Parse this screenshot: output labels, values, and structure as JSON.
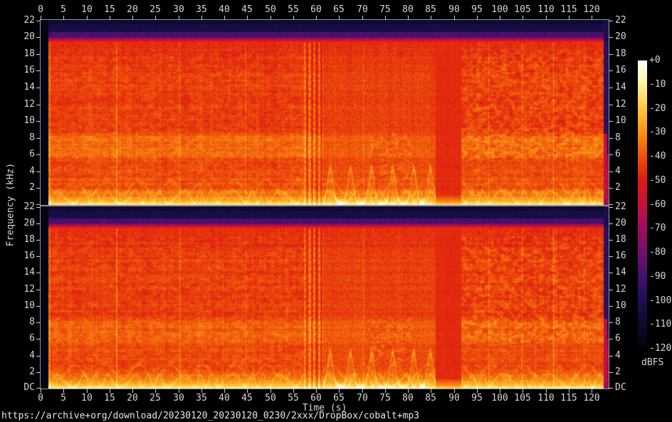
{
  "chart_data": {
    "type": "heatmap",
    "subtype": "audio-spectrogram",
    "channels": 2,
    "xlabel": "Time (s)",
    "ylabel": "Frequency (kHz)",
    "colorbar_label": "dBFS",
    "x_range_s": [
      0,
      123.7
    ],
    "x_ticks": [
      0,
      5,
      10,
      15,
      20,
      25,
      30,
      35,
      40,
      45,
      50,
      55,
      60,
      65,
      70,
      75,
      80,
      85,
      90,
      95,
      100,
      105,
      110,
      115,
      120
    ],
    "y_range_khz": [
      0,
      22.05
    ],
    "y_tick_khz": [
      22,
      20,
      18,
      16,
      14,
      12,
      10,
      8,
      6,
      4,
      2
    ],
    "y_dc_label": "DC",
    "colorbar_range_db": [
      -120,
      0
    ],
    "colorbar_tick_labels": [
      "+0",
      "-10",
      "-20",
      "-30",
      "-40",
      "-50",
      "-60",
      "-70",
      "-80",
      "-90",
      "-100",
      "-110",
      "-120"
    ],
    "palette_stops": [
      {
        "db": 0,
        "hex": "#ffffff"
      },
      {
        "db": -10,
        "hex": "#fff29e"
      },
      {
        "db": -20,
        "hex": "#ffc83c"
      },
      {
        "db": -30,
        "hex": "#fa9116"
      },
      {
        "db": -40,
        "hex": "#ee500a"
      },
      {
        "db": -50,
        "hex": "#de1812"
      },
      {
        "db": -60,
        "hex": "#c41240"
      },
      {
        "db": -70,
        "hex": "#9e0c5c"
      },
      {
        "db": -80,
        "hex": "#700e6e"
      },
      {
        "db": -90,
        "hex": "#3e126c"
      },
      {
        "db": -100,
        "hex": "#1c1050"
      },
      {
        "db": -110,
        "hex": "#0c0a2c"
      },
      {
        "db": -120,
        "hex": "#020108"
      }
    ],
    "cutoff_khz": 19.5,
    "segments": [
      {
        "start_s": 0,
        "end_s": 1.7,
        "type": "silence"
      },
      {
        "start_s": 1.7,
        "end_s": 57.2,
        "type": "music"
      },
      {
        "start_s": 57.2,
        "end_s": 61.4,
        "type": "striped-transition"
      },
      {
        "start_s": 61.4,
        "end_s": 86.0,
        "type": "music-bass-swells"
      },
      {
        "start_s": 86.0,
        "end_s": 91.5,
        "type": "quiet-uniform"
      },
      {
        "start_s": 91.5,
        "end_s": 122.5,
        "type": "music"
      },
      {
        "start_s": 122.5,
        "end_s": 123.7,
        "type": "fade-out"
      }
    ],
    "bass_swell_times_s": [
      63.0,
      67.4,
      72.0,
      76.6,
      81.2,
      84.8
    ],
    "accent_line_times_s": [
      16.5,
      30.2,
      44.6,
      70.2,
      97.5,
      104.8,
      111.6,
      118.3
    ]
  },
  "footer": {
    "url": "https://archive+org/download/20230120_20230120_0230/2xxx/DropBox/cobalt+mp3"
  }
}
